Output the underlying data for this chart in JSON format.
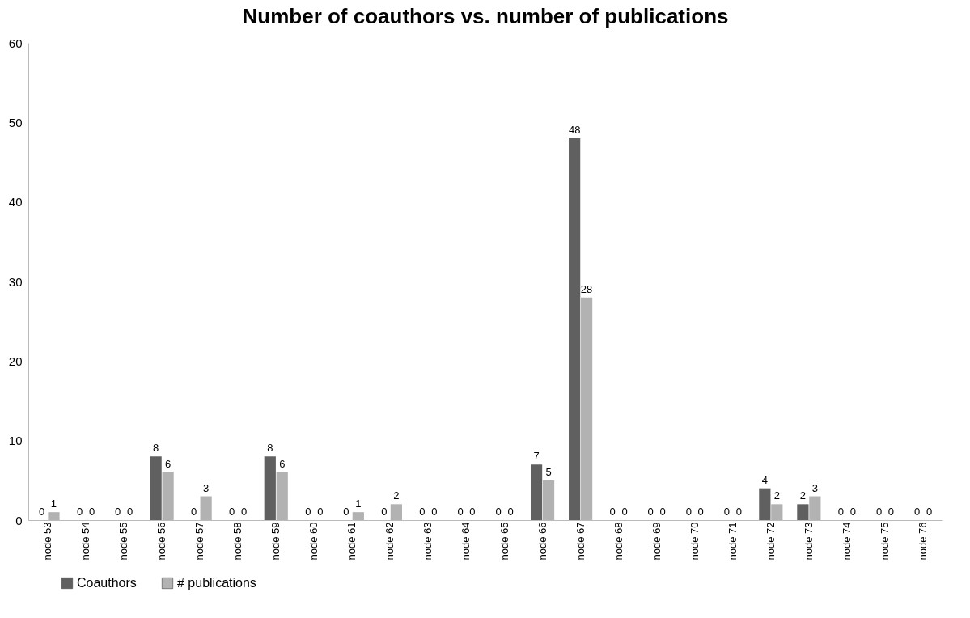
{
  "chart_data": {
    "type": "bar",
    "title": "Number of coauthors vs. number of publications",
    "categories": [
      "node 53",
      "node 54",
      "node 55",
      "node 56",
      "node 57",
      "node 58",
      "node 59",
      "node 60",
      "node 61",
      "node 62",
      "node 63",
      "node 64",
      "node 65",
      "node 66",
      "node 67",
      "node 68",
      "node 69",
      "node 70",
      "node 71",
      "node 72",
      "node 73",
      "node 74",
      "node 75",
      "node 76"
    ],
    "series": [
      {
        "name": "Coauthors",
        "color": "#606060",
        "values": [
          0,
          0,
          0,
          8,
          0,
          0,
          8,
          0,
          0,
          0,
          0,
          0,
          0,
          7,
          48,
          0,
          0,
          0,
          0,
          4,
          2,
          0,
          0,
          0
        ]
      },
      {
        "name": "# publications",
        "color": "#b2b2b2",
        "values": [
          1,
          0,
          0,
          6,
          3,
          0,
          6,
          0,
          1,
          2,
          0,
          0,
          0,
          5,
          28,
          0,
          0,
          0,
          0,
          2,
          3,
          0,
          0,
          0
        ]
      }
    ],
    "ylim": [
      0,
      60
    ],
    "yticks": [
      0,
      10,
      20,
      30,
      40,
      50,
      60
    ],
    "grid": false,
    "legend": "bottom left",
    "data_labels": true
  }
}
